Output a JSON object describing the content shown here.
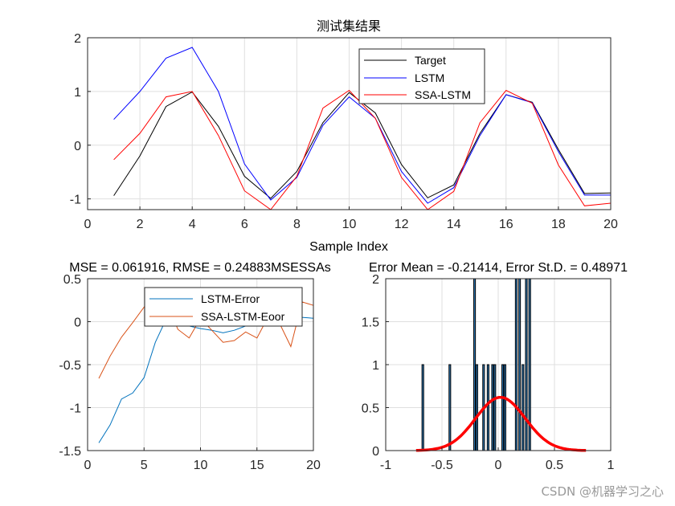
{
  "chart_data": [
    {
      "type": "line",
      "title": "测试集结果",
      "xlabel": "Sample Index",
      "ylabel": "",
      "xlim": [
        0,
        20
      ],
      "ylim": [
        -1.2,
        2
      ],
      "xticks": [
        "0",
        "2",
        "4",
        "6",
        "8",
        "10",
        "12",
        "14",
        "16",
        "18",
        "20"
      ],
      "yticks": [
        "-1",
        "0",
        "1",
        "2"
      ],
      "grid": true,
      "legend": "top-right",
      "x": [
        1,
        2,
        3,
        4,
        5,
        6,
        7,
        8,
        9,
        10,
        11,
        12,
        13,
        14,
        15,
        16,
        17,
        18,
        19,
        20
      ],
      "series": [
        {
          "name": "Target",
          "color": "#000000",
          "values": [
            -0.94,
            -0.2,
            0.72,
            0.99,
            0.35,
            -0.58,
            -0.99,
            -0.49,
            0.42,
            0.98,
            0.6,
            -0.36,
            -0.98,
            -0.74,
            0.22,
            0.94,
            0.8,
            -0.08,
            -0.9,
            -0.89
          ]
        },
        {
          "name": "LSTM",
          "color": "#0000ff",
          "values": [
            0.48,
            1.0,
            1.62,
            1.82,
            1.0,
            -0.35,
            -1.02,
            -0.6,
            0.37,
            0.9,
            0.5,
            -0.49,
            -1.08,
            -0.79,
            0.18,
            0.94,
            0.79,
            -0.12,
            -0.93,
            -0.93
          ]
        },
        {
          "name": "SSA-LSTM",
          "color": "#ff0000",
          "values": [
            -0.27,
            0.22,
            0.9,
            1.0,
            0.18,
            -0.85,
            -1.2,
            -0.58,
            0.69,
            1.02,
            0.5,
            -0.6,
            -1.2,
            -0.86,
            0.42,
            1.02,
            0.78,
            -0.37,
            -1.13,
            -1.08
          ]
        }
      ]
    },
    {
      "type": "line",
      "title": "MSE = 0.061916, RMSE = 0.24883MSESSAs",
      "xlim": [
        0,
        20
      ],
      "ylim": [
        -1.5,
        0.5
      ],
      "xticks": [
        "0",
        "5",
        "10",
        "15",
        "20"
      ],
      "yticks": [
        "-1.5",
        "-1",
        "-0.5",
        "0",
        "0.5"
      ],
      "grid": true,
      "legend": "top",
      "x": [
        1,
        2,
        3,
        4,
        5,
        6,
        7,
        8,
        9,
        10,
        11,
        12,
        13,
        14,
        15,
        16,
        17,
        18,
        19,
        20
      ],
      "series": [
        {
          "name": "LSTM-Error",
          "color": "#0072bd",
          "values": [
            -1.41,
            -1.2,
            -0.9,
            -0.83,
            -0.65,
            -0.24,
            0.04,
            0.0,
            -0.05,
            -0.08,
            -0.1,
            -0.13,
            -0.1,
            -0.05,
            -0.04,
            0.0,
            -0.01,
            -0.04,
            0.05,
            0.04
          ]
        },
        {
          "name": "SSA-LSTM-Eoor",
          "color": "#d95319",
          "values": [
            -0.66,
            -0.4,
            -0.18,
            -0.01,
            0.17,
            0.3,
            0.22,
            -0.09,
            -0.19,
            0.04,
            -0.1,
            -0.24,
            -0.22,
            -0.12,
            -0.19,
            0.06,
            -0.02,
            -0.29,
            0.23,
            0.19
          ]
        }
      ]
    },
    {
      "type": "bar",
      "title": "Error Mean = -0.21414, Error St.D. = 0.48971",
      "xlim": [
        -1,
        1
      ],
      "ylim": [
        0,
        2
      ],
      "xticks": [
        "-1",
        "-0.5",
        "0",
        "0.5",
        "1"
      ],
      "yticks": [
        "0",
        "0.5",
        "1",
        "1.5",
        "2"
      ],
      "grid": true,
      "bar_color": "#2e7ab8",
      "bin_width": 0.015,
      "bins": [
        {
          "x": -0.67,
          "count": 1
        },
        {
          "x": -0.43,
          "count": 1
        },
        {
          "x": -0.21,
          "count": 2
        },
        {
          "x": -0.19,
          "count": 1
        },
        {
          "x": -0.13,
          "count": 1
        },
        {
          "x": -0.09,
          "count": 1
        },
        {
          "x": -0.05,
          "count": 1
        },
        {
          "x": -0.03,
          "count": 1
        },
        {
          "x": 0.04,
          "count": 1
        },
        {
          "x": 0.06,
          "count": 1
        },
        {
          "x": 0.16,
          "count": 2
        },
        {
          "x": 0.19,
          "count": 2
        },
        {
          "x": 0.22,
          "count": 1
        },
        {
          "x": 0.25,
          "count": 2
        },
        {
          "x": 0.28,
          "count": 2
        }
      ],
      "curve": {
        "color": "#ff0000",
        "mean": 0.02,
        "peak": 0.62,
        "sigma": 0.22,
        "range": [
          -0.73,
          0.78
        ]
      }
    }
  ],
  "watermark": "CSDN @机器学习之心"
}
